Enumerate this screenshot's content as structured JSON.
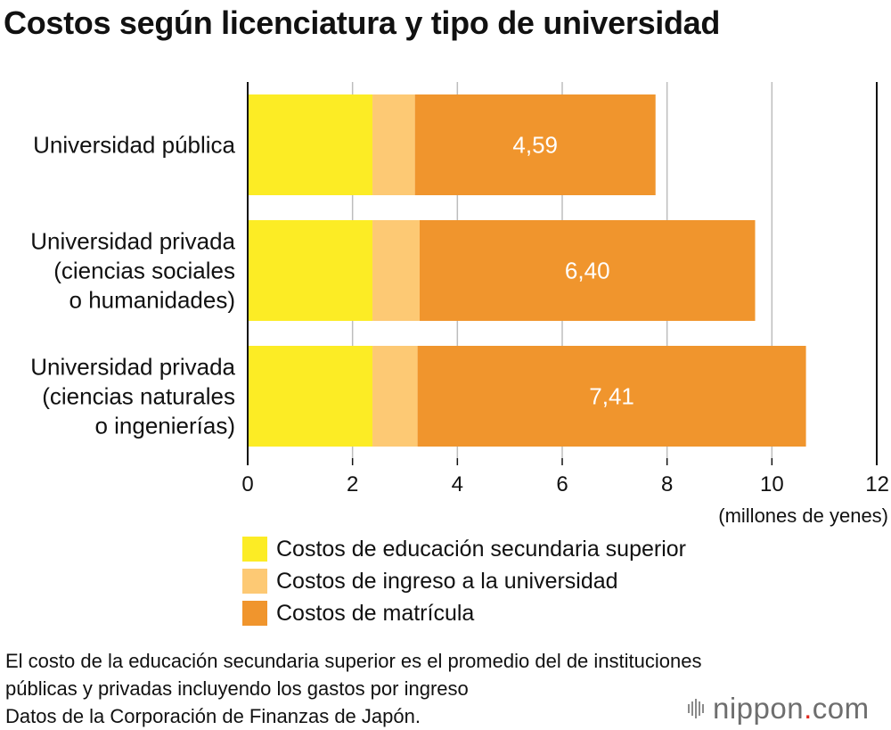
{
  "title": "Costos según licenciatura y tipo de universidad",
  "colors": {
    "secondary": "#FCEC25",
    "admission": "#FDC974",
    "tuition": "#F0952D",
    "axis": "#111111",
    "grid": "#BDBDBD",
    "brand_dot": "#E02A1F"
  },
  "chart_data": {
    "type": "bar",
    "orientation": "horizontal",
    "stacked": true,
    "title": "Costos según licenciatura y tipo de universidad",
    "categories": [
      [
        "Universidad pública"
      ],
      [
        "Universidad privada",
        "(ciencias sociales",
        "o humanidades)"
      ],
      [
        "Universidad privada",
        "(ciencias naturales",
        "o ingenierías)"
      ]
    ],
    "series": [
      {
        "name": "Costos de educación secundaria superior",
        "color": "#FCEC25",
        "values": [
          2.38,
          2.38,
          2.38
        ]
      },
      {
        "name": "Costos de ingreso a la universidad",
        "color": "#FDC974",
        "values": [
          0.81,
          0.9,
          0.86
        ]
      },
      {
        "name": "Costos de matrícula",
        "color": "#F0952D",
        "values": [
          4.59,
          6.4,
          7.41
        ],
        "labels": [
          "4,59",
          "6,40",
          "7,41"
        ]
      }
    ],
    "xlim": [
      0,
      12
    ],
    "xticks": [
      "0",
      "2",
      "4",
      "6",
      "8",
      "10",
      "12"
    ],
    "xlabel": "(millones de yenes)",
    "grid": true
  },
  "legend": [
    {
      "label": "Costos de educación secundaria superior",
      "color": "#FCEC25"
    },
    {
      "label": "Costos de ingreso a la universidad",
      "color": "#FDC974"
    },
    {
      "label": "Costos de matrícula",
      "color": "#F0952D"
    }
  ],
  "footnote": [
    "El costo de la educación secundaria superior es el promedio del de instituciones",
    "públicas y privadas incluyendo los gastos por ingreso",
    "Datos de la Corporación de Finanzas de Japón."
  ],
  "brand": {
    "name": "nippon",
    "dot": ".",
    "suffix": "com"
  }
}
